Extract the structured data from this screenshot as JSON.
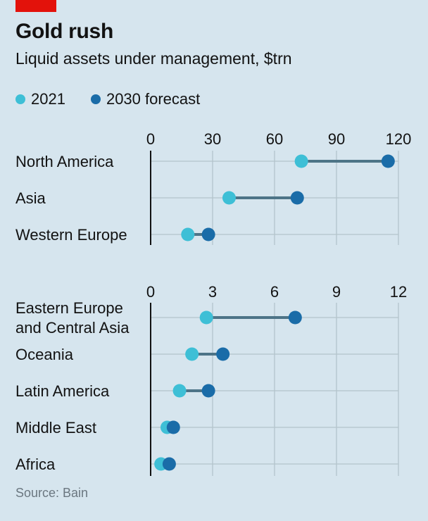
{
  "header": {
    "title": "Gold rush",
    "subtitle": "Liquid assets under management, $trn"
  },
  "legend": [
    {
      "label": "2021",
      "color": "#3ebfd6"
    },
    {
      "label": "2030 forecast",
      "color": "#1a6ca8"
    }
  ],
  "source": "Source: Bain",
  "colors": {
    "y2021": "#3ebfd6",
    "y2030": "#1a6ca8",
    "connector": "#4d7487",
    "grid": "#b3c3cc",
    "axis": "#121212"
  },
  "chart_data": [
    {
      "type": "dumbbell",
      "xlim": [
        0,
        120
      ],
      "ticks": [
        "0",
        "30",
        "60",
        "90",
        "120"
      ],
      "tick_values": [
        0,
        30,
        60,
        90,
        120
      ],
      "categories": [
        {
          "label": [
            "North America"
          ],
          "v2021": 73,
          "v2030": 115
        },
        {
          "label": [
            "Asia"
          ],
          "v2021": 38,
          "v2030": 71
        },
        {
          "label": [
            "Western Europe"
          ],
          "v2021": 18,
          "v2030": 28
        }
      ],
      "series": [
        {
          "name": "2021"
        },
        {
          "name": "2030 forecast"
        }
      ]
    },
    {
      "type": "dumbbell",
      "xlim": [
        0,
        12
      ],
      "ticks": [
        "0",
        "3",
        "6",
        "9",
        "12"
      ],
      "tick_values": [
        0,
        3,
        6,
        9,
        12
      ],
      "categories": [
        {
          "label": [
            "Eastern Europe",
            "and Central Asia"
          ],
          "v2021": 2.7,
          "v2030": 7.0
        },
        {
          "label": [
            "Oceania"
          ],
          "v2021": 2.0,
          "v2030": 3.5
        },
        {
          "label": [
            "Latin America"
          ],
          "v2021": 1.4,
          "v2030": 2.8
        },
        {
          "label": [
            "Middle East"
          ],
          "v2021": 0.8,
          "v2030": 1.1
        },
        {
          "label": [
            "Africa"
          ],
          "v2021": 0.5,
          "v2030": 0.9
        }
      ],
      "series": [
        {
          "name": "2021"
        },
        {
          "name": "2030 forecast"
        }
      ]
    }
  ]
}
